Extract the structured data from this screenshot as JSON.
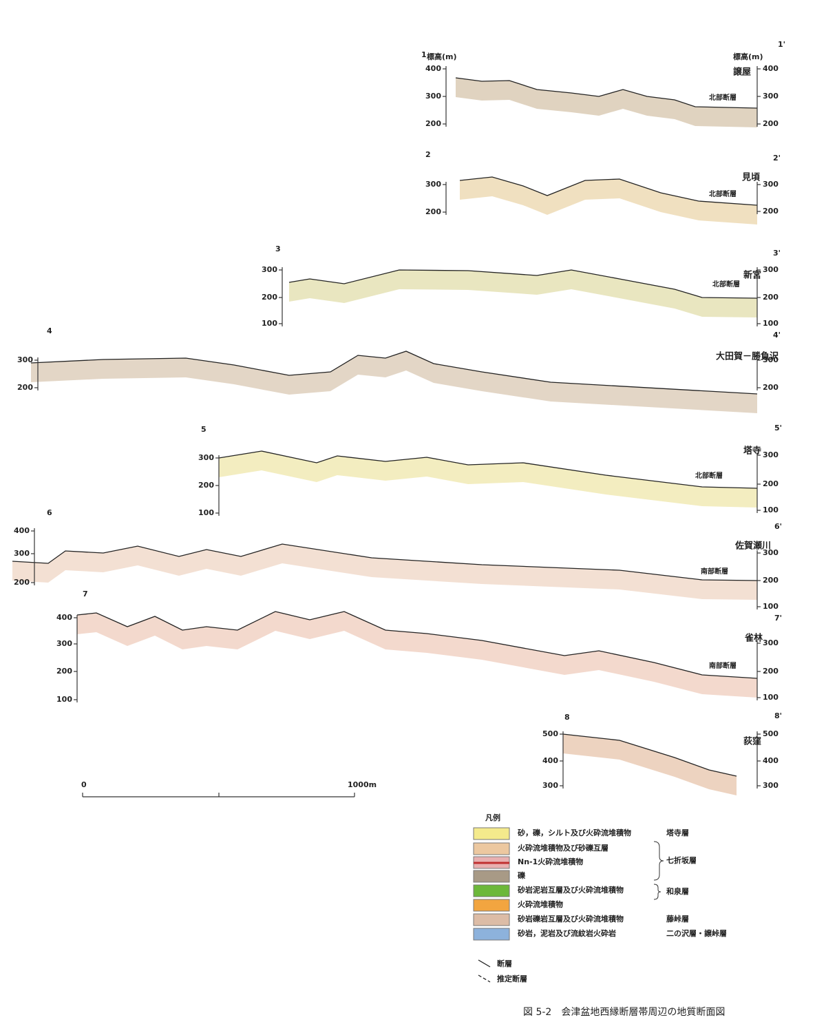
{
  "sections": [
    {
      "start": "1",
      "end": "1'",
      "left_axis_title": "標高(m)",
      "right_axis_title": "標高(m)",
      "place": "譲屋",
      "fault": "北部断層",
      "left_ticks": [
        "400",
        "300",
        "200"
      ],
      "right_ticks": [
        "400",
        "300",
        "200"
      ]
    },
    {
      "start": "2",
      "end": "2'",
      "place": "見頃",
      "fault": "北部断層",
      "left_ticks": [
        "300",
        "200"
      ],
      "right_ticks": [
        "300",
        "200"
      ]
    },
    {
      "start": "3",
      "end": "3'",
      "place": "新宮",
      "fault": "北部断層",
      "left_ticks": [
        "300",
        "200",
        "100"
      ],
      "right_ticks": [
        "300",
        "200",
        "100"
      ]
    },
    {
      "start": "4",
      "end": "4'",
      "place": "大田賀－勝負沢",
      "left_ticks": [
        "300",
        "200"
      ],
      "right_ticks": [
        "300",
        "200"
      ]
    },
    {
      "start": "5",
      "end": "5'",
      "place": "塔寺",
      "fault": "北部断層",
      "left_ticks": [
        "300",
        "200",
        "100"
      ],
      "right_ticks": [
        "300",
        "200",
        "100"
      ]
    },
    {
      "start": "6",
      "end": "6'",
      "place": "佐賀瀬川",
      "fault": "南部断層",
      "left_ticks": [
        "400",
        "300",
        "200"
      ],
      "right_ticks": [
        "300",
        "200",
        "100"
      ]
    },
    {
      "start": "7",
      "end": "7'",
      "place": "雀林",
      "fault": "南部断層",
      "left_ticks": [
        "400",
        "300",
        "200",
        "100"
      ],
      "right_ticks": [
        "300",
        "200",
        "100"
      ]
    },
    {
      "start": "8",
      "end": "8'",
      "place": "荻窪",
      "left_ticks": [
        "500",
        "400",
        "300"
      ],
      "right_ticks": [
        "500",
        "400",
        "300"
      ]
    }
  ],
  "scale": {
    "start": "0",
    "end": "1000m"
  },
  "legend": {
    "title": "凡例",
    "items": [
      {
        "label": "砂，礫，シルト及び火砕流堆積物",
        "color": "#f4ea8c"
      },
      {
        "label": "火砕流堆積物及び砂礫互層",
        "color": "#ecc8a0"
      },
      {
        "label": "Nn-1火砕流堆積物",
        "color": "#e8b0b0"
      },
      {
        "label": "礫",
        "color": "#a89a86"
      },
      {
        "label": "砂岩泥岩互層及び火砕流堆積物",
        "color": "#6cb83a"
      },
      {
        "label": "火砕流堆積物",
        "color": "#f2a540"
      },
      {
        "label": "砂岩礫岩互層及び火砕流堆積物",
        "color": "#dcbca6"
      },
      {
        "label": "砂岩，泥岩及び流紋岩火砕岩",
        "color": "#8db2dc"
      }
    ],
    "formations": [
      "塔寺層",
      "七折坂層",
      "和泉層",
      "藤峠層",
      "二の沢層・譲峠層"
    ]
  },
  "fault_legend": [
    "断層",
    "推定断層"
  ],
  "caption": "図 5-2　会津盆地西縁断層帯周辺の地質断面図"
}
